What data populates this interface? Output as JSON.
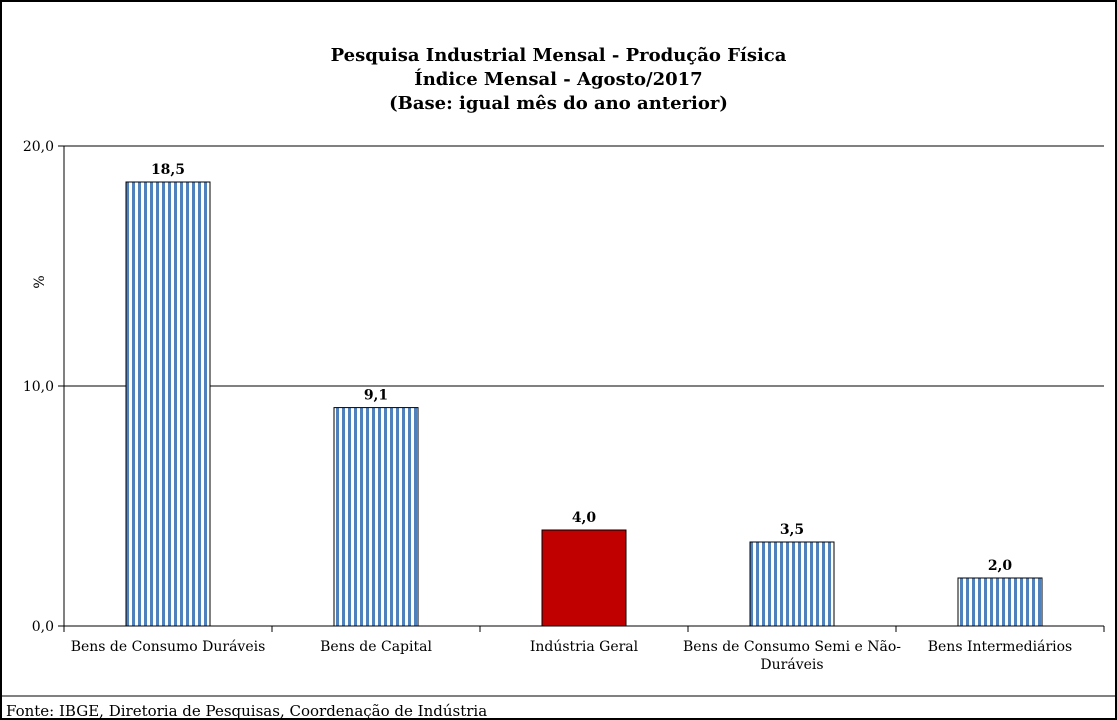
{
  "chart_data": {
    "type": "bar",
    "title": "Pesquisa Industrial Mensal - Produção Física",
    "subtitle": "Índice Mensal - Agosto/2017",
    "subtitle2": "(Base: igual mês do ano anterior)",
    "ylabel": "%",
    "xlabel": "",
    "ylim": [
      0,
      20
    ],
    "yticks": [
      "0,0",
      "10,0",
      "20,0"
    ],
    "yticks_values": [
      0,
      10,
      20
    ],
    "categories": [
      "Bens de Consumo Duráveis",
      "Bens de Capital",
      "Indústria Geral",
      "Bens de Consumo Semi e Não-Duráveis",
      "Bens Intermediários"
    ],
    "category_lines": [
      [
        "Bens de Consumo Duráveis"
      ],
      [
        "Bens de Capital"
      ],
      [
        "Indústria Geral"
      ],
      [
        "Bens de Consumo Semi e Não-",
        "Duráveis"
      ],
      [
        "Bens Intermediários"
      ]
    ],
    "values": [
      18.5,
      9.1,
      4.0,
      3.5,
      2.0
    ],
    "data_labels": [
      "18,5",
      "9,1",
      "4,0",
      "3,5",
      "2,0"
    ],
    "highlight_index": 2,
    "colors": {
      "bar_stripe": "#4f81bd",
      "highlight": "#c00000",
      "axis": "#000000"
    },
    "grid": true
  },
  "source": "Fonte: IBGE, Diretoria de Pesquisas, Coordenação de Indústria"
}
